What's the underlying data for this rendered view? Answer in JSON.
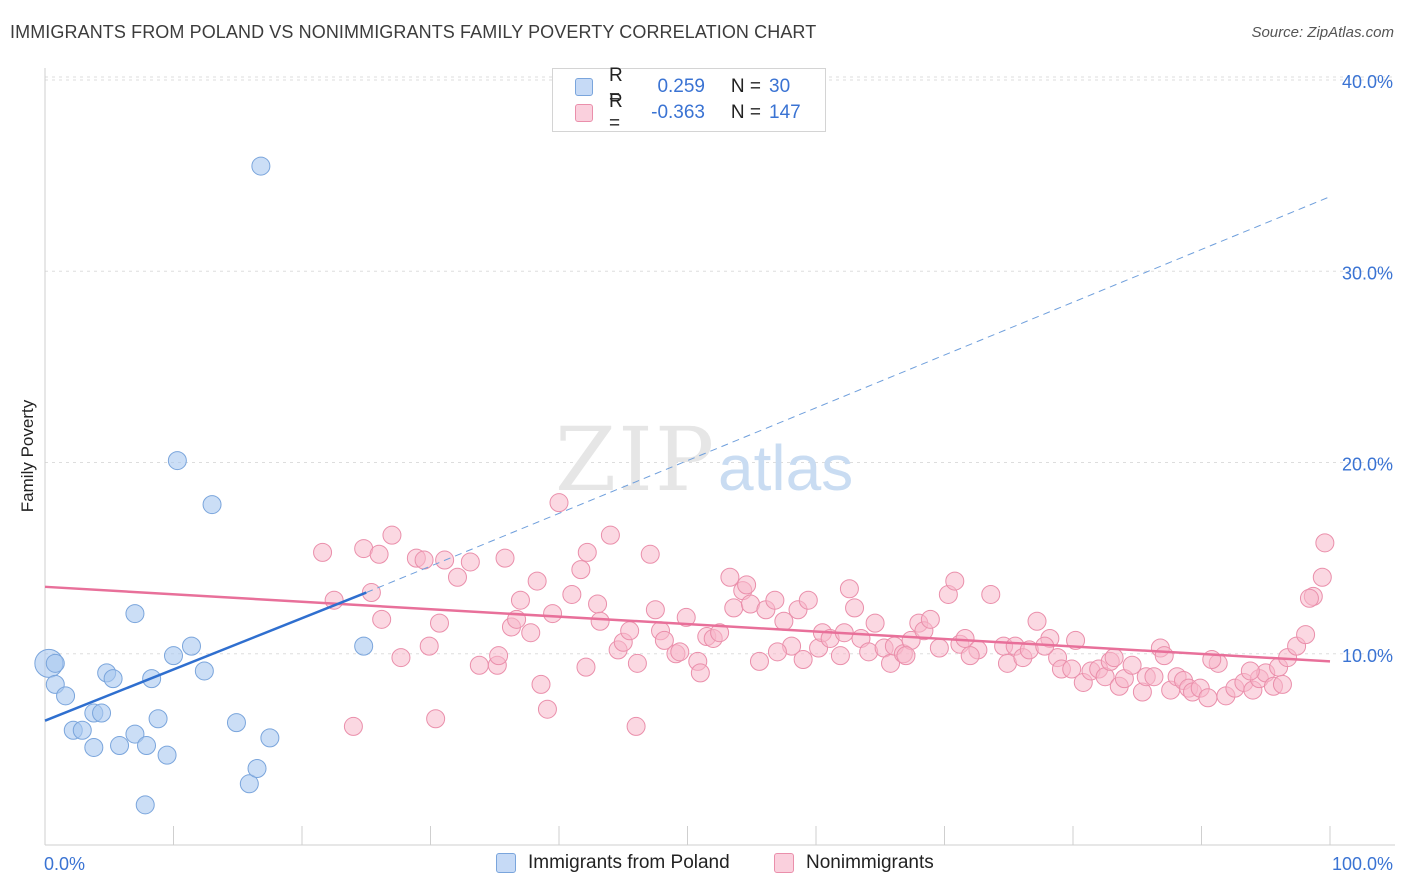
{
  "title": "IMMIGRANTS FROM POLAND VS NONIMMIGRANTS FAMILY POVERTY CORRELATION CHART",
  "source": "Source: ZipAtlas.com",
  "watermark": {
    "zip": "ZIP",
    "atlas": "atlas"
  },
  "legend": {
    "rows": [
      {
        "r_label": "R =",
        "r_value": "0.259",
        "n_label": "N =",
        "n_value": "30",
        "color": "#a9c8f0"
      },
      {
        "r_label": "R =",
        "r_value": "-0.363",
        "n_label": "N =",
        "n_value": "147",
        "color": "#f7b8cb"
      }
    ]
  },
  "bottom_legend": {
    "series1": "Immigrants from Poland",
    "series2": "Nonimmigrants"
  },
  "colors": {
    "blue_fill": "#a9c8f0",
    "blue_stroke": "#7aa5dc",
    "blue_line": "#2f6fcf",
    "pink_fill": "#f7b8cb",
    "pink_stroke": "#ea8fab",
    "pink_line": "#e8709a",
    "axis_label": "#3a73d3",
    "grid": "#dddddd"
  },
  "chart_data": {
    "type": "scatter",
    "title": "IMMIGRANTS FROM POLAND VS NONIMMIGRANTS FAMILY POVERTY CORRELATION CHART",
    "xlabel": "",
    "ylabel": "Family Poverty",
    "xlim": [
      0,
      100
    ],
    "ylim": [
      0,
      40
    ],
    "x_tick_labels": [
      "0.0%",
      "100.0%"
    ],
    "y_ticks": [
      10,
      20,
      30,
      40
    ],
    "y_tick_labels": [
      "10.0%",
      "20.0%",
      "30.0%",
      "40.0%"
    ],
    "grid": true,
    "legend_position": "top-center",
    "series": [
      {
        "name": "Immigrants from Poland",
        "points": [
          [
            0.3,
            9.5
          ],
          [
            0.8,
            9.5
          ],
          [
            0.8,
            8.4
          ],
          [
            1.6,
            7.8
          ],
          [
            2.2,
            6.0
          ],
          [
            2.9,
            6.0
          ],
          [
            3.8,
            6.9
          ],
          [
            3.8,
            5.1
          ],
          [
            4.4,
            6.9
          ],
          [
            4.8,
            9.0
          ],
          [
            5.3,
            8.7
          ],
          [
            5.8,
            5.2
          ],
          [
            7.0,
            12.1
          ],
          [
            7.0,
            5.8
          ],
          [
            7.8,
            2.1
          ],
          [
            7.9,
            5.2
          ],
          [
            8.3,
            8.7
          ],
          [
            8.8,
            6.6
          ],
          [
            9.5,
            4.7
          ],
          [
            10.0,
            9.9
          ],
          [
            10.3,
            20.1
          ],
          [
            11.4,
            10.4
          ],
          [
            12.4,
            9.1
          ],
          [
            13.0,
            17.8
          ],
          [
            14.9,
            6.4
          ],
          [
            15.9,
            3.2
          ],
          [
            16.5,
            4.0
          ],
          [
            16.8,
            35.5
          ],
          [
            17.5,
            5.6
          ],
          [
            24.8,
            10.4
          ]
        ],
        "trend": {
          "x1": 0,
          "y1": 6.5,
          "x2": 25,
          "y2": 13.2
        },
        "trend_extension": {
          "x1": 25,
          "y1": 13.2,
          "x2": 100,
          "y2": 33.9
        }
      },
      {
        "name": "Nonimmigrants",
        "points": [
          [
            21.6,
            15.3
          ],
          [
            24.0,
            6.2
          ],
          [
            24.8,
            15.5
          ],
          [
            25.4,
            13.2
          ],
          [
            26.0,
            15.2
          ],
          [
            26.2,
            11.8
          ],
          [
            27.0,
            16.2
          ],
          [
            27.7,
            9.8
          ],
          [
            28.9,
            15.0
          ],
          [
            29.5,
            14.9
          ],
          [
            29.9,
            10.4
          ],
          [
            30.4,
            6.6
          ],
          [
            30.7,
            11.6
          ],
          [
            31.1,
            14.9
          ],
          [
            33.1,
            14.8
          ],
          [
            33.8,
            9.4
          ],
          [
            35.2,
            9.4
          ],
          [
            35.3,
            9.9
          ],
          [
            35.8,
            15.0
          ],
          [
            36.3,
            11.4
          ],
          [
            36.7,
            11.8
          ],
          [
            37.8,
            11.1
          ],
          [
            38.3,
            13.8
          ],
          [
            38.6,
            8.4
          ],
          [
            39.1,
            7.1
          ],
          [
            39.5,
            12.1
          ],
          [
            40.0,
            17.9
          ],
          [
            41.0,
            13.1
          ],
          [
            41.7,
            14.4
          ],
          [
            42.2,
            15.3
          ],
          [
            42.1,
            9.3
          ],
          [
            43.0,
            12.6
          ],
          [
            43.2,
            11.7
          ],
          [
            44.0,
            16.2
          ],
          [
            44.6,
            10.2
          ],
          [
            45.0,
            10.6
          ],
          [
            46.0,
            6.2
          ],
          [
            46.1,
            9.5
          ],
          [
            47.1,
            15.2
          ],
          [
            47.5,
            12.3
          ],
          [
            47.9,
            11.2
          ],
          [
            48.2,
            10.7
          ],
          [
            49.1,
            10.0
          ],
          [
            49.4,
            10.1
          ],
          [
            49.9,
            11.9
          ],
          [
            50.8,
            9.6
          ],
          [
            51.5,
            10.9
          ],
          [
            52.0,
            10.8
          ],
          [
            52.5,
            11.1
          ],
          [
            53.3,
            14.0
          ],
          [
            53.6,
            12.4
          ],
          [
            54.3,
            13.3
          ],
          [
            54.6,
            13.6
          ],
          [
            54.9,
            12.6
          ],
          [
            55.6,
            9.6
          ],
          [
            56.1,
            12.3
          ],
          [
            56.8,
            12.8
          ],
          [
            57.5,
            11.7
          ],
          [
            58.1,
            10.4
          ],
          [
            58.6,
            12.3
          ],
          [
            59.0,
            9.7
          ],
          [
            59.4,
            12.8
          ],
          [
            60.2,
            10.3
          ],
          [
            60.5,
            11.1
          ],
          [
            61.1,
            10.8
          ],
          [
            61.9,
            9.9
          ],
          [
            62.2,
            11.1
          ],
          [
            62.6,
            13.4
          ],
          [
            63.5,
            10.8
          ],
          [
            64.1,
            10.1
          ],
          [
            64.6,
            11.6
          ],
          [
            65.3,
            10.3
          ],
          [
            65.8,
            9.5
          ],
          [
            66.1,
            10.4
          ],
          [
            66.8,
            10.0
          ],
          [
            67.4,
            10.7
          ],
          [
            68.0,
            11.6
          ],
          [
            68.4,
            11.2
          ],
          [
            68.9,
            11.8
          ],
          [
            69.6,
            10.3
          ],
          [
            70.3,
            13.1
          ],
          [
            70.8,
            13.8
          ],
          [
            71.2,
            10.5
          ],
          [
            71.6,
            10.8
          ],
          [
            72.6,
            10.2
          ],
          [
            73.6,
            13.1
          ],
          [
            74.6,
            10.4
          ],
          [
            74.9,
            9.5
          ],
          [
            75.5,
            10.4
          ],
          [
            76.1,
            9.8
          ],
          [
            76.6,
            10.2
          ],
          [
            77.2,
            11.7
          ],
          [
            78.2,
            10.8
          ],
          [
            78.8,
            9.8
          ],
          [
            79.1,
            9.2
          ],
          [
            79.9,
            9.2
          ],
          [
            80.2,
            10.7
          ],
          [
            80.8,
            8.5
          ],
          [
            81.4,
            9.1
          ],
          [
            82.0,
            9.2
          ],
          [
            82.5,
            8.8
          ],
          [
            82.9,
            9.6
          ],
          [
            83.6,
            8.3
          ],
          [
            84.0,
            8.7
          ],
          [
            84.6,
            9.4
          ],
          [
            85.4,
            8.0
          ],
          [
            85.7,
            8.8
          ],
          [
            86.3,
            8.8
          ],
          [
            86.8,
            10.3
          ],
          [
            87.6,
            8.1
          ],
          [
            88.1,
            8.8
          ],
          [
            88.6,
            8.6
          ],
          [
            89.0,
            8.2
          ],
          [
            89.3,
            8.0
          ],
          [
            89.9,
            8.2
          ],
          [
            90.5,
            7.7
          ],
          [
            91.3,
            9.5
          ],
          [
            91.9,
            7.8
          ],
          [
            92.6,
            8.2
          ],
          [
            93.3,
            8.5
          ],
          [
            94.0,
            8.1
          ],
          [
            94.5,
            8.7
          ],
          [
            95.0,
            9.0
          ],
          [
            95.6,
            8.3
          ],
          [
            96.0,
            9.3
          ],
          [
            96.7,
            9.8
          ],
          [
            97.4,
            10.4
          ],
          [
            98.1,
            11.0
          ],
          [
            98.7,
            13.0
          ],
          [
            99.4,
            14.0
          ],
          [
            99.6,
            15.8
          ],
          [
            22.5,
            12.8
          ],
          [
            32.1,
            14.0
          ],
          [
            37.0,
            12.8
          ],
          [
            45.5,
            11.2
          ],
          [
            51.0,
            9.0
          ],
          [
            57.0,
            10.1
          ],
          [
            63.0,
            12.4
          ],
          [
            67.0,
            9.9
          ],
          [
            72.0,
            9.9
          ],
          [
            77.8,
            10.4
          ],
          [
            83.2,
            9.8
          ],
          [
            87.1,
            9.9
          ],
          [
            90.8,
            9.7
          ],
          [
            93.8,
            9.1
          ],
          [
            96.3,
            8.4
          ],
          [
            98.4,
            12.9
          ]
        ],
        "trend": {
          "x1": 0,
          "y1": 13.5,
          "x2": 100,
          "y2": 9.6
        }
      }
    ]
  }
}
